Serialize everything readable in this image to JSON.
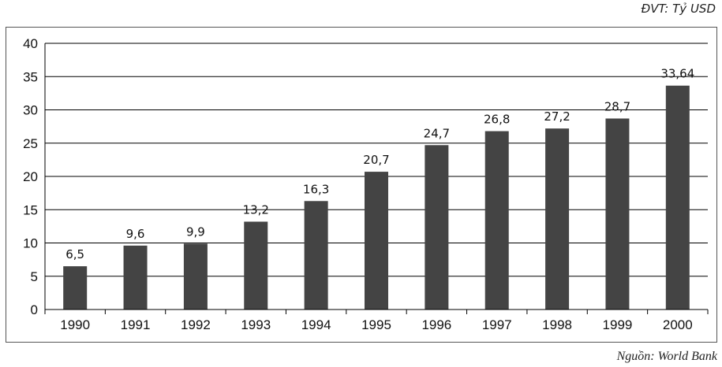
{
  "unit_note": "ĐVT: Tỷ USD",
  "source_note": "Nguồn: World Bank",
  "colors": {
    "bar": "#444444",
    "grid": "#000000",
    "axis": "#000000"
  },
  "chart_data": {
    "type": "bar",
    "categories": [
      "1990",
      "1991",
      "1992",
      "1993",
      "1994",
      "1995",
      "1996",
      "1997",
      "1998",
      "1999",
      "2000"
    ],
    "values": [
      6.5,
      9.6,
      9.9,
      13.2,
      16.3,
      20.7,
      24.7,
      26.8,
      27.2,
      28.7,
      33.64
    ],
    "data_labels": [
      "6,5",
      "9,6",
      "9,9",
      "13,2",
      "16,3",
      "20,7",
      "24,7",
      "26,8",
      "27,2",
      "28,7",
      "33,64"
    ],
    "y_ticks": [
      0,
      5,
      10,
      15,
      20,
      25,
      30,
      35,
      40
    ],
    "ylim": [
      0,
      40
    ],
    "grid": true,
    "legend": "none"
  }
}
